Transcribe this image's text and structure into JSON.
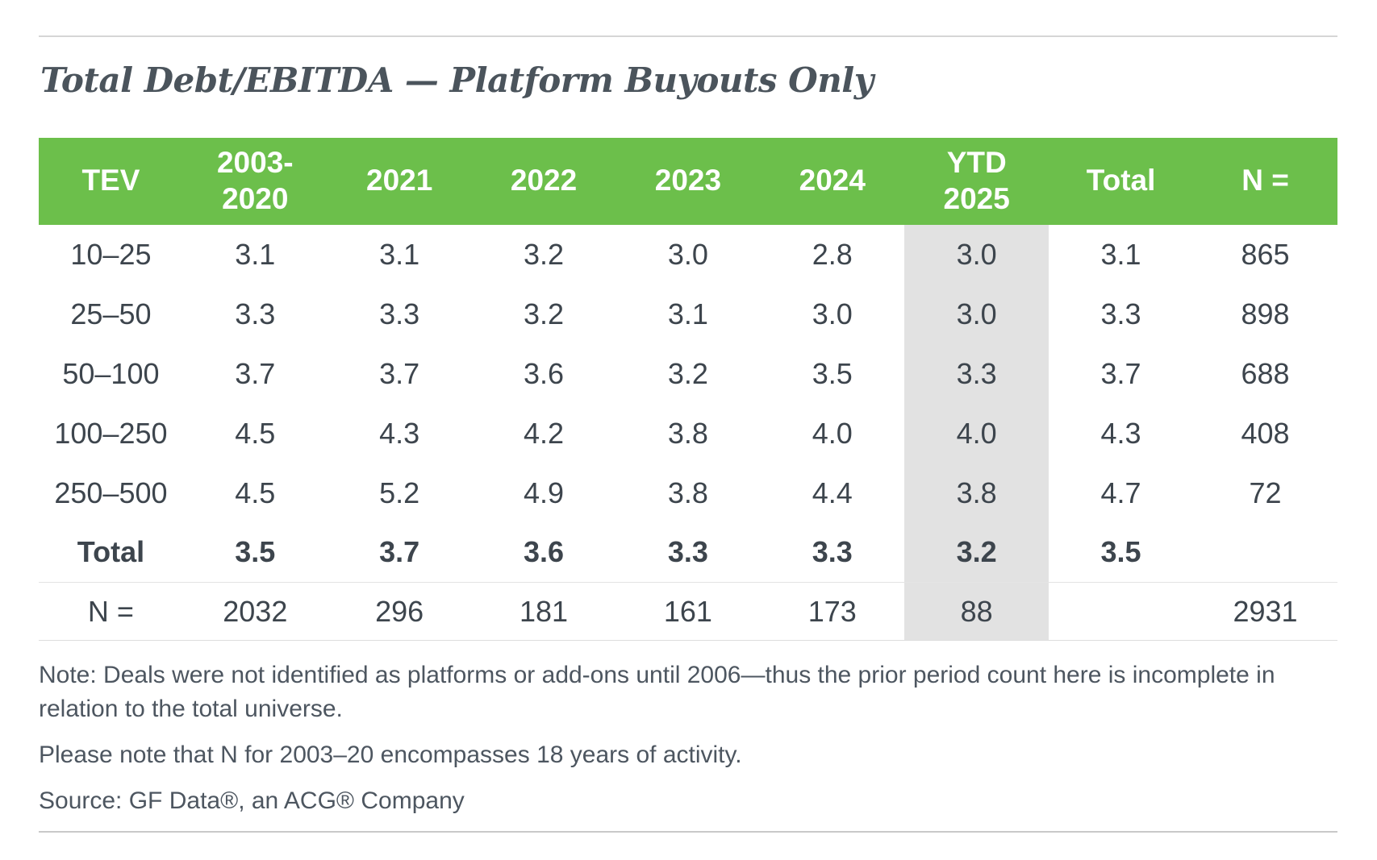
{
  "page": {
    "title": "Total Debt/EBITDA — Platform Buyouts Only"
  },
  "colors": {
    "header_bg": "#6cbf4b",
    "header_text": "#ffffff",
    "highlight_column_bg": "#e2e2e2",
    "body_text": "#3d454d",
    "title_text": "#4b545c"
  },
  "table": {
    "columns": [
      "TEV",
      "2003-\n2020",
      "2021",
      "2022",
      "2023",
      "2024",
      "YTD\n2025",
      "Total",
      "N ="
    ],
    "rows": [
      {
        "label": "10–25",
        "values": [
          "3.1",
          "3.1",
          "3.2",
          "3.0",
          "2.8",
          "3.0",
          "3.1",
          "865"
        ]
      },
      {
        "label": "25–50",
        "values": [
          "3.3",
          "3.3",
          "3.2",
          "3.1",
          "3.0",
          "3.0",
          "3.3",
          "898"
        ]
      },
      {
        "label": "50–100",
        "values": [
          "3.7",
          "3.7",
          "3.6",
          "3.2",
          "3.5",
          "3.3",
          "3.7",
          "688"
        ]
      },
      {
        "label": "100–250",
        "values": [
          "4.5",
          "4.3",
          "4.2",
          "3.8",
          "4.0",
          "4.0",
          "4.3",
          "408"
        ]
      },
      {
        "label": "250–500",
        "values": [
          "4.5",
          "5.2",
          "4.9",
          "3.8",
          "4.4",
          "3.8",
          "4.7",
          "72"
        ]
      },
      {
        "label": "Total",
        "values": [
          "3.5",
          "3.7",
          "3.6",
          "3.3",
          "3.3",
          "3.2",
          "3.5",
          ""
        ]
      },
      {
        "label": "N =",
        "values": [
          "2032",
          "296",
          "181",
          "161",
          "173",
          "88",
          "",
          "2931"
        ]
      }
    ]
  },
  "notes": {
    "note1": "Note: Deals were not identified as platforms or add-ons until 2006—thus the prior period count here is incomplete in relation to the total universe.",
    "note2": "Please note that N for 2003–20 encompasses 18 years of activity.",
    "source": "Source: GF Data®, an ACG® Company"
  },
  "chart_data": {
    "type": "table",
    "title": "Total Debt/EBITDA — Platform Buyouts Only",
    "columns": [
      "TEV",
      "2003-2020",
      "2021",
      "2022",
      "2023",
      "2024",
      "YTD 2025",
      "Total",
      "N ="
    ],
    "rows": [
      [
        "10–25",
        3.1,
        3.1,
        3.2,
        3.0,
        2.8,
        3.0,
        3.1,
        865
      ],
      [
        "25–50",
        3.3,
        3.3,
        3.2,
        3.1,
        3.0,
        3.0,
        3.3,
        898
      ],
      [
        "50–100",
        3.7,
        3.7,
        3.6,
        3.2,
        3.5,
        3.3,
        3.7,
        688
      ],
      [
        "100–250",
        4.5,
        4.3,
        4.2,
        3.8,
        4.0,
        4.0,
        4.3,
        408
      ],
      [
        "250–500",
        4.5,
        5.2,
        4.9,
        3.8,
        4.4,
        3.8,
        4.7,
        72
      ],
      [
        "Total",
        3.5,
        3.7,
        3.6,
        3.3,
        3.3,
        3.2,
        3.5,
        null
      ],
      [
        "N =",
        2032,
        296,
        181,
        161,
        173,
        88,
        null,
        2931
      ]
    ],
    "highlighted_column": "YTD 2025",
    "notes": [
      "Note: Deals were not identified as platforms or add-ons until 2006—thus the prior period count here is incomplete in relation to the total universe.",
      "Please note that N for 2003–20 encompasses 18 years of activity.",
      "Source: GF Data®, an ACG® Company"
    ]
  }
}
